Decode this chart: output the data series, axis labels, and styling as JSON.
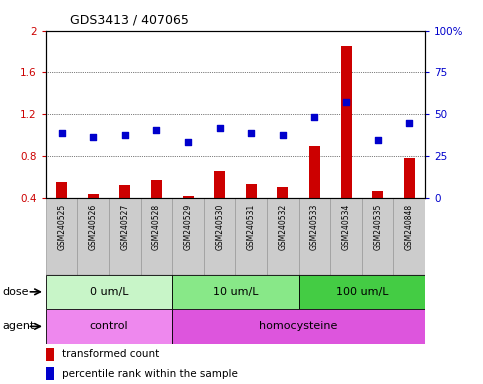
{
  "title": "GDS3413 / 407065",
  "samples": [
    "GSM240525",
    "GSM240526",
    "GSM240527",
    "GSM240528",
    "GSM240529",
    "GSM240530",
    "GSM240531",
    "GSM240532",
    "GSM240533",
    "GSM240534",
    "GSM240535",
    "GSM240848"
  ],
  "transformed_count": [
    0.55,
    0.44,
    0.52,
    0.57,
    0.42,
    0.66,
    0.53,
    0.5,
    0.9,
    1.85,
    0.46,
    0.78
  ],
  "percentile_rank_left": [
    1.02,
    0.98,
    1.0,
    1.05,
    0.93,
    1.07,
    1.02,
    1.0,
    1.17,
    1.32,
    0.95,
    1.12
  ],
  "ylim_left": [
    0.4,
    2.0
  ],
  "ylim_right": [
    0,
    100
  ],
  "yticks_left": [
    0.4,
    0.8,
    1.2,
    1.6,
    2.0
  ],
  "yticks_right": [
    0,
    25,
    50,
    75,
    100
  ],
  "ytick_labels_left": [
    "0.4",
    "0.8",
    "1.2",
    "1.6",
    "2"
  ],
  "ytick_labels_right": [
    "0",
    "25",
    "50",
    "75",
    "100%"
  ],
  "dose_groups": [
    {
      "label": "0 um/L",
      "start": 0,
      "end": 3,
      "color": "#c8f5c8"
    },
    {
      "label": "10 um/L",
      "start": 4,
      "end": 7,
      "color": "#88e888"
    },
    {
      "label": "100 um/L",
      "start": 8,
      "end": 11,
      "color": "#44cc44"
    }
  ],
  "agent_groups": [
    {
      "label": "control",
      "start": 0,
      "end": 3,
      "color": "#ee88ee"
    },
    {
      "label": "homocysteine",
      "start": 4,
      "end": 11,
      "color": "#dd55dd"
    }
  ],
  "bar_color": "#cc0000",
  "dot_color": "#0000cc",
  "bar_width": 0.35,
  "dot_size": 22,
  "grid_color": "#000000",
  "tick_label_color_left": "#cc0000",
  "tick_label_color_right": "#0000cc",
  "legend_red_label": "transformed count",
  "legend_blue_label": "percentile rank within the sample",
  "dose_label": "dose",
  "agent_label": "agent",
  "label_box_color": "#cccccc",
  "label_box_edge": "#999999"
}
